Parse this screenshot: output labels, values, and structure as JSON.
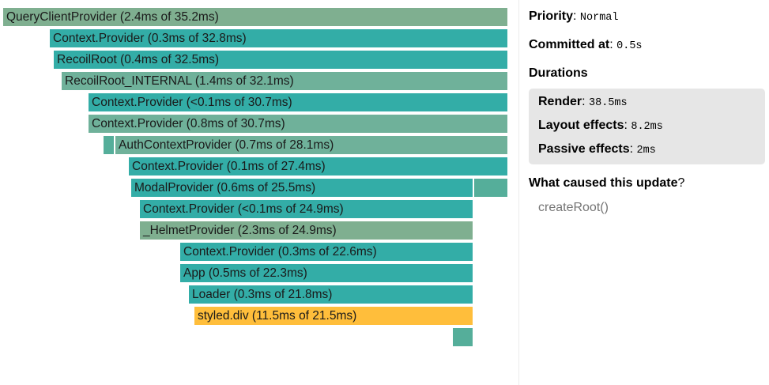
{
  "colors": {
    "teal": "#33ada7",
    "teal_mid": "#55ae9a",
    "sage": "#6fb19a",
    "green": "#7faf90",
    "yellow": "#ffbe3b",
    "sidebar_box": "#e6e6e6",
    "muted_text": "#757575"
  },
  "flamegraph": {
    "nodes": [
      {
        "label": "QueryClientProvider (2.4ms of 35.2ms)",
        "color": "#7faf90"
      },
      {
        "label": "Context.Provider (0.3ms of 32.8ms)",
        "color": "#33ada7"
      },
      {
        "label": "RecoilRoot (0.4ms of 32.5ms)",
        "color": "#33ada7"
      },
      {
        "label": "RecoilRoot_INTERNAL (1.4ms of 32.1ms)",
        "color": "#6fb19a"
      },
      {
        "label": "Context.Provider (<0.1ms of 30.7ms)",
        "color": "#33ada7"
      },
      {
        "label": "Context.Provider (0.8ms of 30.7ms)",
        "color": "#6fb19a"
      },
      {
        "label": "",
        "color": "#55ae9a"
      },
      {
        "label": "AuthContextProvider (0.7ms of 28.1ms)",
        "color": "#6fb19a"
      },
      {
        "label": "Context.Provider (0.1ms of 27.4ms)",
        "color": "#33ada7"
      },
      {
        "label": "ModalProvider (0.6ms of 25.5ms)",
        "color": "#33ada7"
      },
      {
        "label": "",
        "color": "#55ae9a"
      },
      {
        "label": "Context.Provider (<0.1ms of 24.9ms)",
        "color": "#33ada7"
      },
      {
        "label": "_HelmetProvider (2.3ms of 24.9ms)",
        "color": "#7faf90"
      },
      {
        "label": "Context.Provider (0.3ms of 22.6ms)",
        "color": "#33ada7"
      },
      {
        "label": "App (0.5ms of 22.3ms)",
        "color": "#33ada7"
      },
      {
        "label": "Loader (0.3ms of 21.8ms)",
        "color": "#33ada7"
      },
      {
        "label": "styled.div (11.5ms of 21.5ms)",
        "color": "#ffbe3b"
      },
      {
        "label": "",
        "color": "#55ae9a"
      }
    ]
  },
  "sidebar": {
    "priority": {
      "label": "Priority",
      "value": "Normal"
    },
    "committed": {
      "label": "Committed at",
      "value": "0.5s"
    },
    "durations_title": "Durations",
    "render": {
      "label": "Render",
      "value": "38.5ms"
    },
    "layout_effects": {
      "label": "Layout effects",
      "value": "8.2ms"
    },
    "passive_effects": {
      "label": "Passive effects",
      "value": "2ms"
    },
    "cause_title": "What caused this update",
    "cause_qmark": "?",
    "cause_item": "createRoot()"
  }
}
